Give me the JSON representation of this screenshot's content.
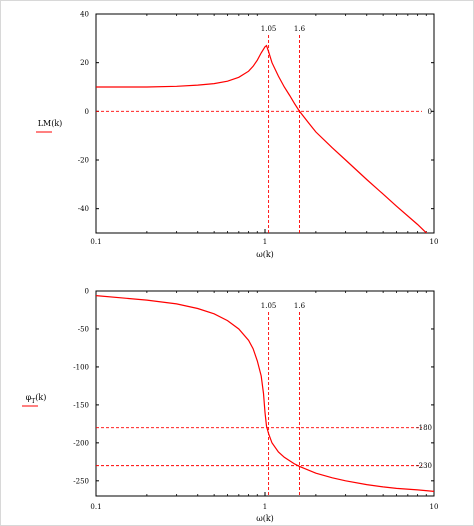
{
  "chart_data": [
    {
      "type": "line",
      "xscale": "log",
      "xlim": [
        0.1,
        10
      ],
      "ylim": [
        -50,
        40
      ],
      "xticks": [
        "0.1",
        "1",
        "10"
      ],
      "yticks": [
        "40",
        "20",
        "0",
        "-20",
        "-40"
      ],
      "xlabel": "ω(k)",
      "ylabel": "LM(k)",
      "series": [
        {
          "color": "#ff0000",
          "x": [
            0.1,
            0.2,
            0.3,
            0.4,
            0.5,
            0.6,
            0.7,
            0.8,
            0.85,
            0.9,
            0.95,
            1.0,
            1.02,
            1.05,
            1.1,
            1.2,
            1.3,
            1.4,
            1.5,
            1.6,
            1.8,
            2,
            2.5,
            3,
            4,
            5,
            6,
            8,
            10
          ],
          "y": [
            10,
            10,
            10.3,
            10.8,
            11.4,
            12.4,
            14,
            16.5,
            18.5,
            21,
            24,
            26.5,
            27,
            24.5,
            20,
            14.5,
            10,
            6.5,
            3,
            0,
            -4.5,
            -8.5,
            -15,
            -20,
            -28,
            -34,
            -39,
            -46.5,
            -53
          ]
        }
      ],
      "vlines": [
        {
          "x": 1.05,
          "label": "1.05"
        },
        {
          "x": 1.6,
          "label": "1.6"
        }
      ],
      "hlines": [
        {
          "y": 0,
          "label": "0"
        }
      ],
      "grid": false
    },
    {
      "type": "line",
      "xscale": "log",
      "xlim": [
        0.1,
        10
      ],
      "ylim": [
        -270,
        0
      ],
      "xticks": [
        "0.1",
        "1",
        "10"
      ],
      "yticks": [
        "0",
        "-50",
        "-100",
        "-150",
        "-200",
        "-250"
      ],
      "xlabel": "ω(k)",
      "ylabel": "φ_T(k)",
      "series": [
        {
          "color": "#ff0000",
          "x": [
            0.1,
            0.2,
            0.3,
            0.4,
            0.5,
            0.6,
            0.7,
            0.8,
            0.85,
            0.9,
            0.95,
            0.98,
            1.0,
            1.02,
            1.05,
            1.1,
            1.2,
            1.3,
            1.5,
            1.6,
            2,
            2.5,
            3,
            4,
            5,
            6,
            8,
            10
          ],
          "y": [
            -6,
            -12,
            -17,
            -23,
            -30,
            -39,
            -50,
            -65,
            -76,
            -92,
            -112,
            -135,
            -160,
            -178,
            -188,
            -200,
            -212,
            -219,
            -228,
            -231,
            -240,
            -246,
            -250,
            -255,
            -258,
            -260,
            -262,
            -264
          ]
        }
      ],
      "vlines": [
        {
          "x": 1.05,
          "label": "1.05"
        },
        {
          "x": 1.6,
          "label": "1.6"
        }
      ],
      "hlines": [
        {
          "y": -180,
          "label": "-180"
        },
        {
          "y": -230,
          "label": "-230"
        }
      ],
      "grid": false
    }
  ],
  "colors": {
    "curve": "#ff0000",
    "frame": "#000000"
  }
}
